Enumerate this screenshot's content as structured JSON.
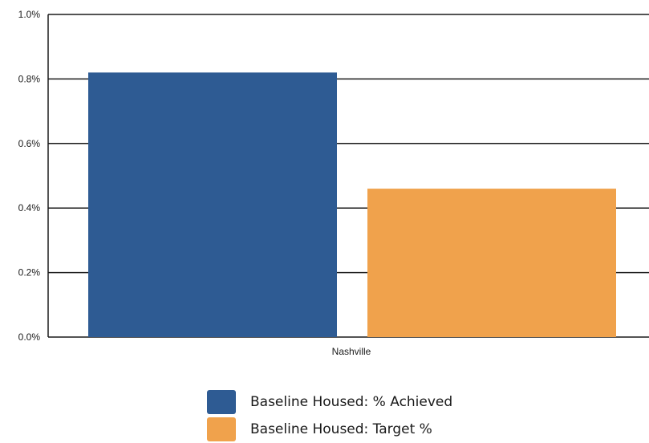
{
  "chart_data": {
    "type": "bar",
    "title": "",
    "xlabel": "",
    "ylabel": "",
    "categories": [
      "Nashville"
    ],
    "series": [
      {
        "name": "Baseline Housed: % Achieved",
        "values": [
          0.82
        ],
        "color": "#2e5b93"
      },
      {
        "name": "Baseline Housed: Target %",
        "values": [
          0.46
        ],
        "color": "#f0a24c"
      }
    ],
    "ylim": [
      0,
      1.0
    ],
    "yticks": [
      0.0,
      0.2,
      0.4,
      0.6,
      0.8,
      1.0
    ],
    "ytick_labels": [
      "0.0%",
      "0.2%",
      "0.4%",
      "0.6%",
      "0.8%",
      "1.0%"
    ],
    "grid": true,
    "legend_position": "bottom"
  }
}
